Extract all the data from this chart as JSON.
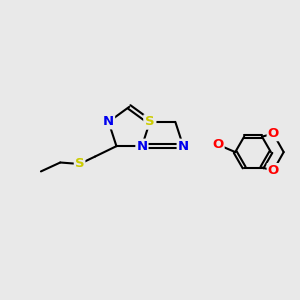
{
  "bg_color": "#e9e9e9",
  "atom_colors": {
    "N": "#0000ee",
    "S": "#cccc00",
    "O": "#ff0000",
    "C": "#000000"
  },
  "bond_color": "#000000",
  "figsize": [
    3.0,
    3.0
  ],
  "dpi": 100
}
